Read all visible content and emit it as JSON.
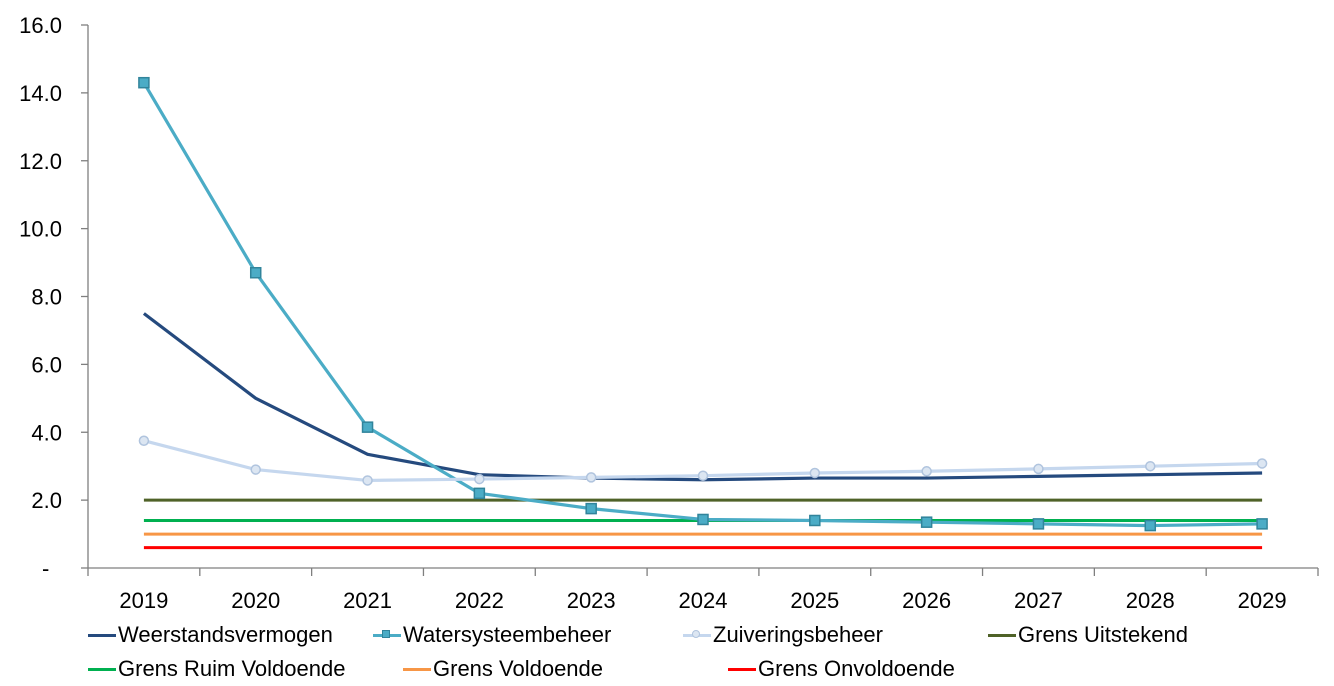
{
  "chart_data": {
    "type": "line",
    "categories": [
      "2019",
      "2020",
      "2021",
      "2022",
      "2023",
      "2024",
      "2025",
      "2026",
      "2027",
      "2028",
      "2029"
    ],
    "ylim": [
      0,
      16
    ],
    "y_ticks": [
      "-",
      "2.0",
      "4.0",
      "6.0",
      "8.0",
      "10.0",
      "12.0",
      "14.0",
      "16.0"
    ],
    "y_tick_values": [
      0,
      2,
      4,
      6,
      8,
      10,
      12,
      14,
      16
    ],
    "grid": false,
    "legend_position": "bottom",
    "series": [
      {
        "name": "Weerstandsvermogen",
        "color": "#254a7e",
        "marker": "none",
        "values": [
          7.5,
          5.0,
          3.35,
          2.75,
          2.65,
          2.6,
          2.65,
          2.65,
          2.7,
          2.75,
          2.8
        ]
      },
      {
        "name": "Watersysteembeheer",
        "color": "#4bacc6",
        "marker": "square",
        "values": [
          14.3,
          8.7,
          4.15,
          2.2,
          1.75,
          1.43,
          1.4,
          1.35,
          1.3,
          1.25,
          1.3
        ]
      },
      {
        "name": "Zuiveringsbeheer",
        "color": "#c5d7ee",
        "marker": "circle",
        "values": [
          3.75,
          2.9,
          2.58,
          2.62,
          2.67,
          2.72,
          2.8,
          2.85,
          2.92,
          3.0,
          3.08
        ]
      },
      {
        "name": "Grens Uitstekend",
        "color": "#4f6228",
        "marker": "none",
        "values": [
          2.0,
          2.0,
          2.0,
          2.0,
          2.0,
          2.0,
          2.0,
          2.0,
          2.0,
          2.0,
          2.0
        ]
      },
      {
        "name": "Grens Ruim Voldoende",
        "color": "#00b050",
        "marker": "none",
        "values": [
          1.4,
          1.4,
          1.4,
          1.4,
          1.4,
          1.4,
          1.4,
          1.4,
          1.4,
          1.4,
          1.4
        ]
      },
      {
        "name": "Grens Voldoende",
        "color": "#f79646",
        "marker": "none",
        "values": [
          1.0,
          1.0,
          1.0,
          1.0,
          1.0,
          1.0,
          1.0,
          1.0,
          1.0,
          1.0,
          1.0
        ]
      },
      {
        "name": "Grens Onvoldoende",
        "color": "#ff0000",
        "marker": "none",
        "values": [
          0.6,
          0.6,
          0.6,
          0.6,
          0.6,
          0.6,
          0.6,
          0.6,
          0.6,
          0.6,
          0.6
        ]
      }
    ]
  }
}
